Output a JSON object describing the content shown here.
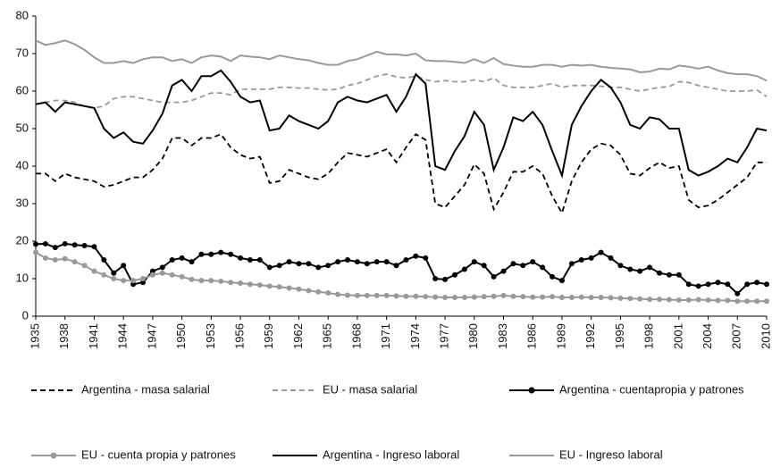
{
  "chart_data": {
    "type": "line",
    "x": [
      1935,
      1936,
      1937,
      1938,
      1939,
      1940,
      1941,
      1942,
      1943,
      1944,
      1945,
      1946,
      1947,
      1948,
      1949,
      1950,
      1951,
      1952,
      1953,
      1954,
      1955,
      1956,
      1957,
      1958,
      1959,
      1960,
      1961,
      1962,
      1963,
      1964,
      1965,
      1966,
      1967,
      1968,
      1969,
      1970,
      1971,
      1972,
      1973,
      1974,
      1975,
      1976,
      1977,
      1978,
      1979,
      1980,
      1981,
      1982,
      1983,
      1984,
      1985,
      1986,
      1987,
      1988,
      1989,
      1990,
      1991,
      1992,
      1993,
      1994,
      1995,
      1996,
      1997,
      1998,
      1999,
      2000,
      2001,
      2002,
      2003,
      2004,
      2005,
      2006,
      2007,
      2008,
      2009,
      2010
    ],
    "xlim": [
      1935,
      2010
    ],
    "xticks": [
      1935,
      1938,
      1941,
      1944,
      1947,
      1950,
      1953,
      1956,
      1959,
      1962,
      1965,
      1968,
      1971,
      1974,
      1977,
      1980,
      1983,
      1986,
      1989,
      1992,
      1995,
      1998,
      2001,
      2004,
      2007,
      2010
    ],
    "ylim": [
      0,
      80
    ],
    "yticks": [
      0,
      10,
      20,
      30,
      40,
      50,
      60,
      70,
      80
    ],
    "grid": false,
    "legend": "bottom",
    "series": [
      {
        "name": "Argentina - masa salarial",
        "color": "#000000",
        "dash": true,
        "marker": false,
        "values": [
          38,
          38,
          36,
          38,
          37,
          36.5,
          36,
          34.5,
          35,
          36,
          37,
          37,
          39,
          42,
          47.5,
          47.5,
          45.5,
          47.5,
          47.5,
          48.5,
          45,
          43,
          42,
          42.5,
          35.5,
          36,
          39,
          38,
          37,
          36.5,
          38,
          41,
          43.5,
          43,
          42.5,
          43.5,
          44.5,
          41,
          45,
          48.5,
          47,
          30,
          29,
          32,
          35,
          40.5,
          38,
          28.5,
          33,
          38.5,
          38.5,
          40,
          38,
          32,
          27.5,
          36,
          41,
          44.5,
          46,
          45.5,
          43,
          38,
          37.5,
          39.5,
          41,
          39.5,
          40,
          31,
          29,
          29.5,
          31,
          33,
          35,
          37,
          41,
          41
        ]
      },
      {
        "name": "EU - masa salarial",
        "color": "#999999",
        "dash": true,
        "marker": false,
        "values": [
          56.5,
          57,
          57.5,
          57.5,
          57,
          56,
          55.5,
          56,
          58,
          58.5,
          58.5,
          58,
          57.5,
          57,
          57,
          57,
          57.5,
          58.5,
          59.5,
          59.5,
          59,
          60.5,
          60.5,
          60.5,
          60.5,
          61,
          61,
          60.8,
          60.8,
          60.5,
          60.3,
          60.5,
          61.5,
          62,
          63,
          64,
          64.5,
          63.8,
          63.5,
          64,
          63,
          62.5,
          62.8,
          62.5,
          62.5,
          63,
          62.5,
          63.5,
          61.5,
          61,
          61,
          61,
          61.5,
          62,
          61,
          61.5,
          61.5,
          61.5,
          61.3,
          61,
          61,
          60.5,
          60,
          60.5,
          61,
          61.2,
          62.5,
          62.3,
          61.5,
          61,
          60.5,
          60,
          60,
          60,
          60.3,
          58.5
        ]
      },
      {
        "name": "Argentina - cuentapropia y patrones",
        "color": "#000000",
        "dash": false,
        "marker": true,
        "values": [
          19.2,
          19.3,
          18.3,
          19.3,
          19,
          18.8,
          18.5,
          15,
          11.5,
          13.5,
          8.5,
          9,
          12,
          13,
          15,
          15.5,
          14.5,
          16.5,
          16.5,
          17,
          16.5,
          15.5,
          15,
          15,
          13,
          13.5,
          14.5,
          14,
          14,
          13,
          13.5,
          14.5,
          15,
          14.5,
          14,
          14.5,
          14.5,
          13.5,
          15,
          16,
          15.5,
          10,
          9.8,
          11,
          12.5,
          14.5,
          13.5,
          10.5,
          12,
          14,
          13.5,
          14.5,
          13,
          10.5,
          9.5,
          14,
          15,
          15.5,
          17,
          15.5,
          13.5,
          12.5,
          12,
          13,
          11.5,
          11,
          11,
          8.5,
          8,
          8.5,
          9,
          8.5,
          6,
          8.5,
          9,
          8.5
        ]
      },
      {
        "name": "EU - cuenta propia y patrones",
        "color": "#999999",
        "dash": false,
        "marker": true,
        "values": [
          17,
          15.5,
          15,
          15.3,
          14.5,
          13.5,
          12,
          11,
          10,
          9.5,
          9.5,
          10,
          11,
          11.5,
          11,
          10.5,
          9.8,
          9.5,
          9.5,
          9.3,
          9,
          8.8,
          8.5,
          8.3,
          8,
          7.8,
          7.5,
          7.2,
          6.8,
          6.5,
          6.2,
          5.8,
          5.6,
          5.5,
          5.5,
          5.5,
          5.5,
          5.4,
          5.3,
          5.3,
          5.2,
          5.1,
          5,
          5,
          5,
          5.1,
          5.2,
          5.3,
          5.5,
          5.3,
          5.2,
          5.1,
          5.1,
          5.2,
          5,
          5,
          5.1,
          5,
          5,
          4.9,
          4.8,
          4.7,
          4.6,
          4.5,
          4.5,
          4.4,
          4.3,
          4.3,
          4.4,
          4.3,
          4.2,
          4.2,
          4,
          4,
          4,
          4
        ]
      },
      {
        "name": "Argentina - Ingreso laboral",
        "color": "#000000",
        "dash": false,
        "marker": false,
        "values": [
          56.5,
          57,
          54.5,
          57,
          56.5,
          56,
          55.5,
          50,
          47.5,
          49,
          46.5,
          46,
          49.5,
          54,
          61.5,
          63,
          60,
          64,
          64,
          65.5,
          62.5,
          58.5,
          57,
          57.5,
          49.5,
          50,
          53.5,
          52,
          51,
          50,
          52,
          57,
          58.5,
          57.5,
          57,
          58,
          59,
          54.5,
          58.5,
          64.5,
          62,
          40,
          39,
          44,
          48,
          54.5,
          51,
          39,
          45,
          53,
          52,
          54.5,
          51,
          44,
          37.5,
          51,
          56,
          60,
          63,
          61,
          57,
          51,
          50,
          53,
          52.5,
          50,
          50,
          39,
          37.5,
          38.5,
          40,
          42,
          41,
          45,
          50,
          49.5
        ]
      },
      {
        "name": "EU - Ingreso laboral",
        "color": "#999999",
        "dash": false,
        "marker": false,
        "values": [
          73.5,
          72.3,
          72.8,
          73.5,
          72.5,
          71,
          69,
          67.5,
          67.5,
          68,
          67.5,
          68.5,
          69,
          69,
          68,
          68.5,
          67.5,
          69,
          69.5,
          69.2,
          68,
          69.5,
          69.2,
          69,
          68.5,
          69.5,
          69,
          68.5,
          68.2,
          67.5,
          67,
          67,
          68,
          68.5,
          69.5,
          70.5,
          69.8,
          69.8,
          69.5,
          70,
          68.2,
          68,
          68,
          67.8,
          67.5,
          68.5,
          67.5,
          68.8,
          67.2,
          66.8,
          66.5,
          66.5,
          67,
          67,
          66.5,
          67,
          66.8,
          67,
          66.5,
          66.2,
          66,
          65.8,
          65,
          65.2,
          66,
          65.8,
          66.8,
          66.5,
          66,
          66.5,
          65.5,
          64.8,
          64.5,
          64.5,
          64,
          62.8
        ]
      }
    ]
  }
}
